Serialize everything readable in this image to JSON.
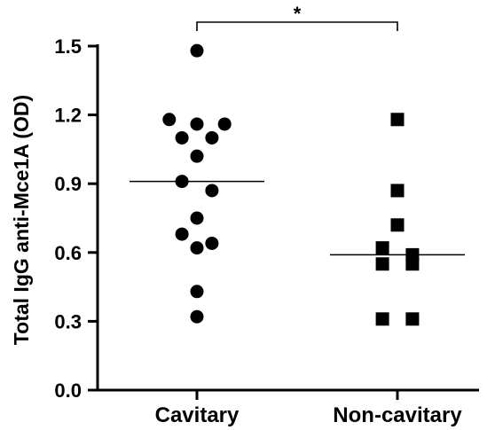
{
  "chart_data": {
    "type": "scatter",
    "ylabel": "Total IgG anti-Mce1A (OD)",
    "xlabel": "",
    "ylim": [
      0.0,
      1.5
    ],
    "yticks": [
      "0.0",
      "0.3",
      "0.6",
      "0.9",
      "1.2",
      "1.5"
    ],
    "ytick_values": [
      0.0,
      0.3,
      0.6,
      0.9,
      1.2,
      1.5
    ],
    "categories": [
      "Cavitary",
      "Non-cavitary"
    ],
    "grid": false,
    "legend": "none",
    "series": [
      {
        "category": "Cavitary",
        "marker": "circle",
        "values": [
          1.48,
          1.18,
          1.16,
          1.16,
          1.1,
          1.1,
          1.02,
          0.91,
          0.87,
          0.75,
          0.68,
          0.64,
          0.62,
          0.43,
          0.32
        ],
        "median": 0.91
      },
      {
        "category": "Non-cavitary",
        "marker": "square",
        "values": [
          1.18,
          0.87,
          0.72,
          0.62,
          0.59,
          0.55,
          0.55,
          0.31,
          0.31
        ],
        "median": 0.59
      }
    ],
    "significance": {
      "between": [
        "Cavitary",
        "Non-cavitary"
      ],
      "label": "*"
    },
    "marker_color": "#000000"
  }
}
